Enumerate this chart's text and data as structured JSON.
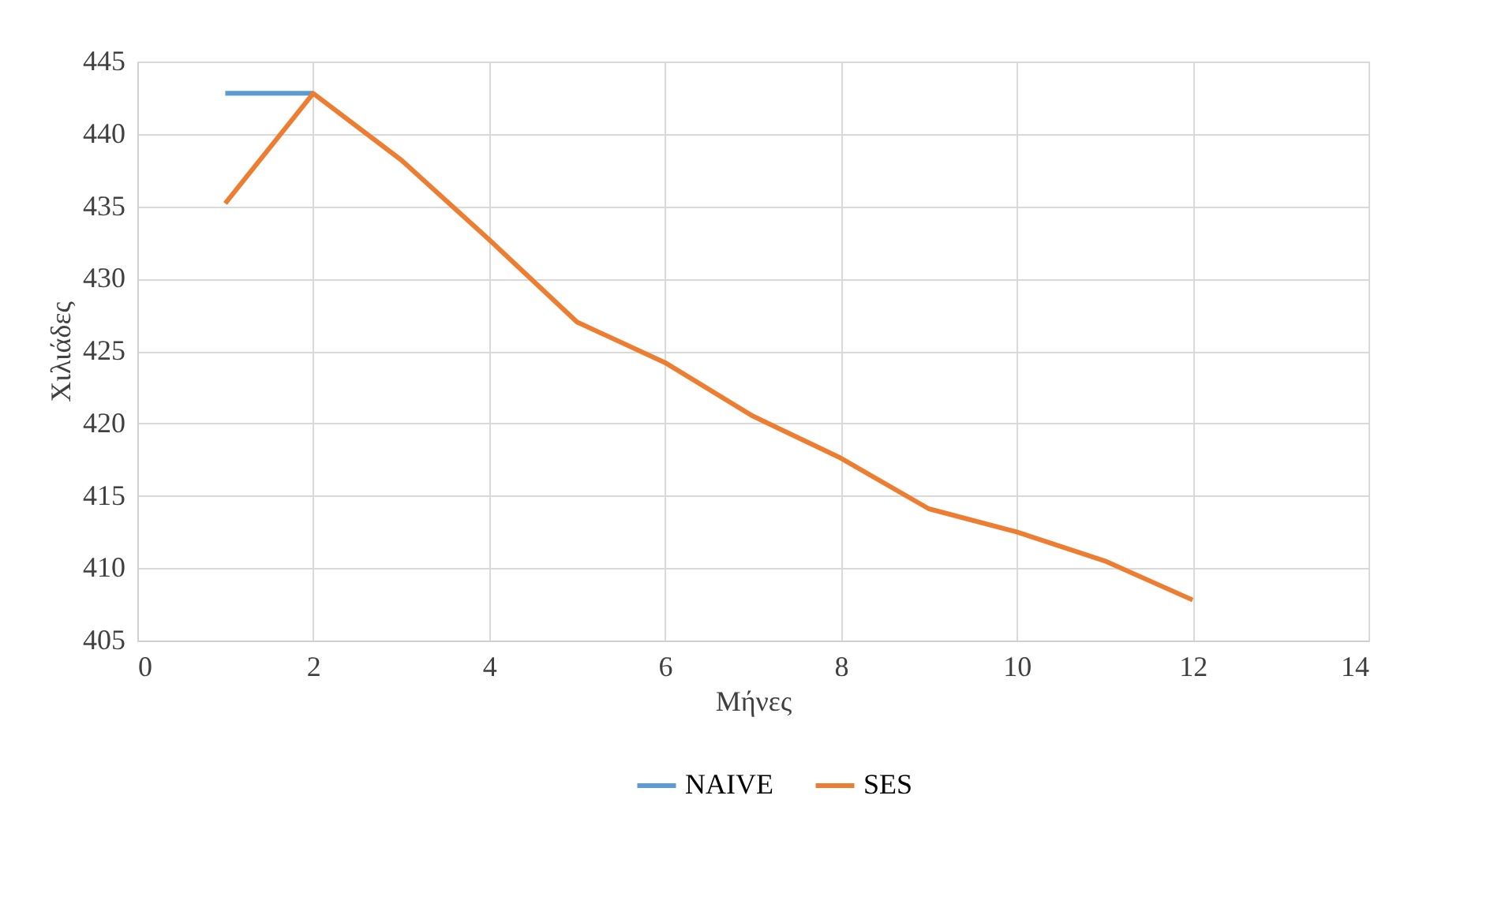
{
  "chart_data": {
    "type": "line",
    "xlabel": "Μήνες",
    "ylabel": "Χιλιάδες",
    "x": [
      1,
      2,
      3,
      4,
      5,
      6,
      7,
      8,
      9,
      10,
      11,
      12
    ],
    "series": [
      {
        "name": "NAIVE",
        "color": "#5b9bd5",
        "values": [
          442.8,
          442.8,
          null,
          null,
          null,
          null,
          null,
          null,
          null,
          null,
          null,
          null
        ]
      },
      {
        "name": "SES",
        "color": "#ed7d31",
        "values": [
          435.2,
          442.8,
          438.2,
          432.7,
          427.0,
          424.2,
          420.5,
          417.6,
          414.1,
          412.5,
          410.5,
          407.8
        ]
      }
    ],
    "xlim": [
      0,
      14
    ],
    "xticks": [
      0,
      2,
      4,
      6,
      8,
      10,
      12,
      14
    ],
    "ylim": [
      405,
      445
    ],
    "yticks": [
      405,
      410,
      415,
      420,
      425,
      430,
      435,
      440,
      445
    ],
    "grid": true,
    "legend": "bottom",
    "marker": "none",
    "line_style": "solid"
  }
}
